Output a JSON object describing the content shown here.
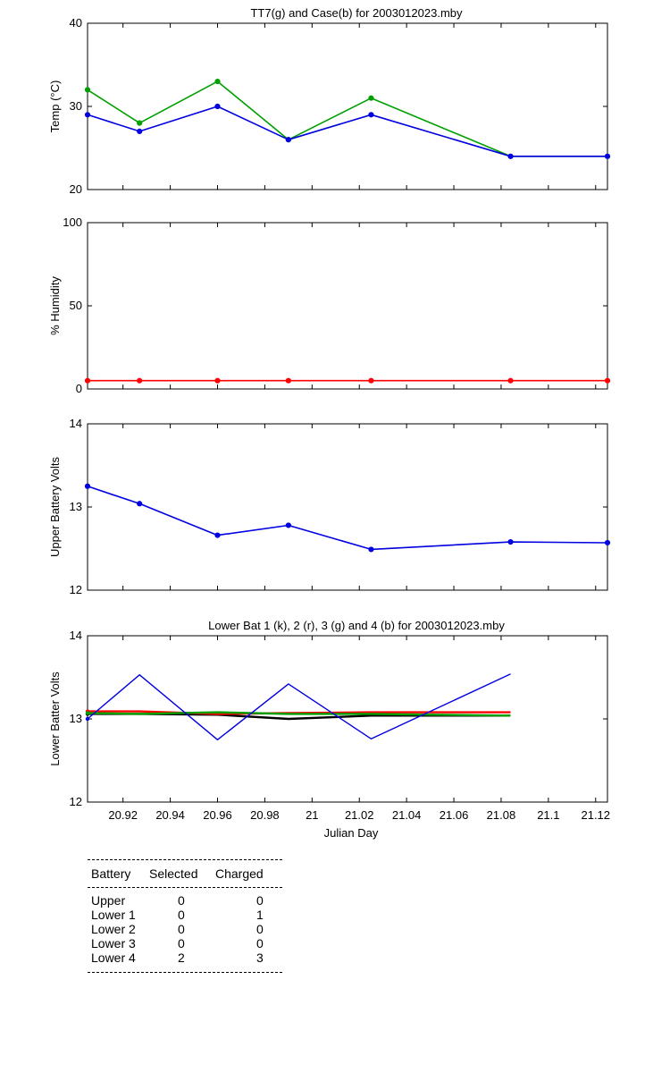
{
  "chart_data": [
    {
      "type": "line",
      "title": "TT7(g) and Case(b) for 2003012023.mby",
      "xlabel": "",
      "ylabel": "Temp  (°C)",
      "xlim": [
        20.905,
        21.125
      ],
      "ylim": [
        20,
        40
      ],
      "yticks": [
        20,
        30,
        40
      ],
      "grid": false,
      "x": [
        20.905,
        20.927,
        20.96,
        20.99,
        21.025,
        21.084,
        21.125
      ],
      "series": [
        {
          "name": "TT7",
          "color": "#00a000",
          "values": [
            32,
            28,
            33,
            26,
            31,
            24,
            24
          ]
        },
        {
          "name": "Case",
          "color": "#0000e0",
          "values": [
            29,
            27,
            30,
            26,
            29,
            24,
            24
          ]
        }
      ]
    },
    {
      "type": "line",
      "title": "",
      "xlabel": "",
      "ylabel": "% Humidity",
      "xlim": [
        20.905,
        21.125
      ],
      "ylim": [
        0,
        100
      ],
      "yticks": [
        0,
        50,
        100
      ],
      "grid": false,
      "x": [
        20.905,
        20.927,
        20.96,
        20.99,
        21.025,
        21.084,
        21.125
      ],
      "series": [
        {
          "color": "#ff0000",
          "values": [
            5,
            5,
            5,
            5,
            5,
            5,
            5
          ]
        }
      ]
    },
    {
      "type": "line",
      "title": "",
      "xlabel": "",
      "ylabel": "Upper Battery Volts",
      "xlim": [
        20.905,
        21.125
      ],
      "ylim": [
        12,
        14
      ],
      "yticks": [
        12,
        13,
        14
      ],
      "grid": false,
      "x": [
        20.905,
        20.927,
        20.96,
        20.99,
        21.025,
        21.084,
        21.125
      ],
      "series": [
        {
          "color": "#0000e0",
          "values": [
            13.25,
            13.04,
            12.66,
            12.78,
            12.49,
            12.58,
            12.57
          ]
        }
      ]
    },
    {
      "type": "line",
      "title": "Lower Bat 1 (k), 2 (r), 3 (g) and 4 (b) for 2003012023.mby",
      "xlabel": "Julian Day",
      "ylabel": "Lower Batter Volts",
      "xlim": [
        20.905,
        21.125
      ],
      "ylim": [
        12,
        14
      ],
      "yticks": [
        12,
        13,
        14
      ],
      "xticks": [
        20.92,
        20.94,
        20.96,
        20.98,
        21,
        21.02,
        21.04,
        21.06,
        21.08,
        21.1,
        21.12
      ],
      "xticklabels": [
        "20.92",
        "20.94",
        "20.96",
        "20.98",
        "21",
        "21.02",
        "21.04",
        "21.06",
        "21.08",
        "21.1",
        "21.12"
      ],
      "grid": false,
      "x": [
        20.905,
        20.927,
        20.96,
        20.99,
        21.025,
        21.084
      ],
      "series": [
        {
          "name": "1",
          "color": "#000000",
          "values": [
            13.06,
            13.06,
            13.05,
            13.0,
            13.04,
            13.04
          ]
        },
        {
          "name": "2",
          "color": "#ff0000",
          "values": [
            13.09,
            13.09,
            13.06,
            13.07,
            13.08,
            13.08
          ]
        },
        {
          "name": "3",
          "color": "#00a000",
          "values": [
            13.07,
            13.06,
            13.08,
            13.06,
            13.06,
            13.04
          ]
        },
        {
          "name": "4",
          "color": "#0000e0",
          "values": [
            13.0,
            13.53,
            12.75,
            13.42,
            12.76,
            13.54
          ]
        }
      ]
    }
  ],
  "battery_table": {
    "headers": {
      "battery": "Battery",
      "selected": "Selected",
      "charged": "Charged"
    },
    "rows": [
      {
        "battery": "Upper",
        "selected": "0",
        "charged": "0"
      },
      {
        "battery": "Lower 1",
        "selected": "0",
        "charged": "1"
      },
      {
        "battery": "Lower 2",
        "selected": "0",
        "charged": "0"
      },
      {
        "battery": "Lower 3",
        "selected": "0",
        "charged": "0"
      },
      {
        "battery": "Lower 4",
        "selected": "2",
        "charged": "3"
      }
    ]
  }
}
